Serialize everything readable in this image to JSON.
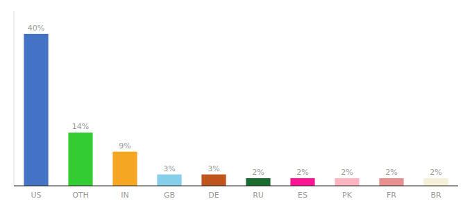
{
  "chart_data": {
    "type": "bar",
    "categories": [
      "US",
      "OTH",
      "IN",
      "GB",
      "DE",
      "RU",
      "ES",
      "PK",
      "FR",
      "BR"
    ],
    "values": [
      40,
      14,
      9,
      3,
      3,
      2,
      2,
      2,
      2,
      2
    ],
    "value_labels": [
      "40%",
      "14%",
      "9%",
      "3%",
      "3%",
      "2%",
      "2%",
      "2%",
      "2%",
      "2%"
    ],
    "colors": [
      "#4472c4",
      "#33cc33",
      "#f5a623",
      "#87ceeb",
      "#c0541e",
      "#1a6b2e",
      "#ff1493",
      "#ffb6c1",
      "#e89090",
      "#f5f0d8"
    ],
    "ylim": [
      0,
      46
    ],
    "data_labels": true,
    "tick_labels": "x",
    "grid": false
  }
}
